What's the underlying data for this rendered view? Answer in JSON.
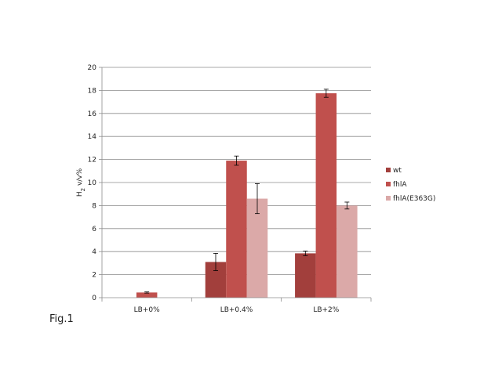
{
  "caption": "Fig.1",
  "chart_data": {
    "type": "bar",
    "ylabel_base": "H",
    "ylabel_sub": "2",
    "ylabel_rest": " v/v%",
    "categories": [
      "LB+0%",
      "LB+0.4%",
      "LB+2%"
    ],
    "ylim": [
      0,
      20
    ],
    "yticks": [
      0,
      2,
      4,
      6,
      8,
      10,
      12,
      14,
      16,
      18,
      20
    ],
    "grid": true,
    "legend_position": "right",
    "series": [
      {
        "name": "wt",
        "color": "#a23f3c",
        "values": [
          0,
          3.1,
          3.85
        ],
        "errors": [
          0,
          0.75,
          0.2
        ]
      },
      {
        "name": "fhlA",
        "color": "#c0504d",
        "values": [
          0.45,
          11.9,
          17.75
        ],
        "errors": [
          0.05,
          0.4,
          0.35
        ]
      },
      {
        "name": "fhlA(E363G)",
        "color": "#dba9a8",
        "values": [
          0,
          8.6,
          8.0
        ],
        "errors": [
          0,
          1.3,
          0.3
        ]
      }
    ]
  }
}
